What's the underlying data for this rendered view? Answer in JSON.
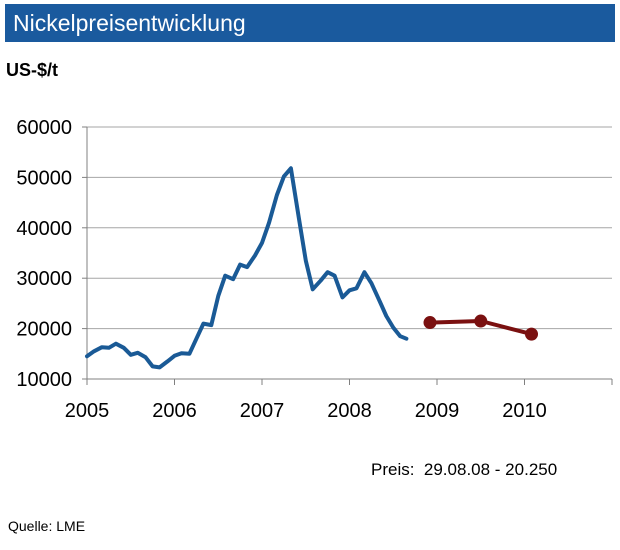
{
  "header": {
    "title": "Nickelpreisentwicklung"
  },
  "price_note": "Preis:  29.08.08 - 20.250",
  "source": "Quelle: LME",
  "colors": {
    "title_bar": "#1a5a9e",
    "historical_line": "#1a5a96",
    "forecast_line": "#7a1010",
    "grid": "#a6a6a6"
  },
  "chart_data": {
    "type": "line",
    "title": "",
    "ylabel": "US-$/t",
    "xlabel": "",
    "ylim": [
      10000,
      60000
    ],
    "yticks": [
      10000,
      20000,
      30000,
      40000,
      50000,
      60000
    ],
    "xlim": [
      2005,
      2011
    ],
    "xticks": [
      2005,
      2006,
      2007,
      2008,
      2009,
      2010
    ],
    "grid": true,
    "legend": "none",
    "series": [
      {
        "style": "line",
        "x": [
          2005.0,
          2005.08,
          2005.17,
          2005.25,
          2005.33,
          2005.42,
          2005.5,
          2005.58,
          2005.67,
          2005.75,
          2005.83,
          2005.92,
          2006.0,
          2006.08,
          2006.17,
          2006.25,
          2006.33,
          2006.42,
          2006.5,
          2006.58,
          2006.67,
          2006.75,
          2006.83,
          2006.92,
          2007.0,
          2007.08,
          2007.17,
          2007.25,
          2007.33,
          2007.42,
          2007.5,
          2007.58,
          2007.67,
          2007.75,
          2007.83,
          2007.92,
          2008.0,
          2008.08,
          2008.17,
          2008.25,
          2008.33,
          2008.42,
          2008.5,
          2008.58,
          2008.65
        ],
        "values": [
          14500,
          15500,
          16300,
          16200,
          17000,
          16200,
          14800,
          15200,
          14300,
          12500,
          12300,
          13500,
          14600,
          15100,
          15000,
          18000,
          21000,
          20700,
          26500,
          30500,
          29800,
          32700,
          32200,
          34500,
          37000,
          41000,
          46500,
          50200,
          51800,
          42000,
          33500,
          27800,
          29500,
          31200,
          30500,
          26200,
          27600,
          28000,
          31200,
          29000,
          26000,
          22500,
          20200,
          18500,
          18000
        ]
      },
      {
        "style": "line-markers",
        "x": [
          2008.92,
          2009.5,
          2010.08
        ],
        "values": [
          21200,
          21500,
          18900
        ]
      }
    ]
  }
}
